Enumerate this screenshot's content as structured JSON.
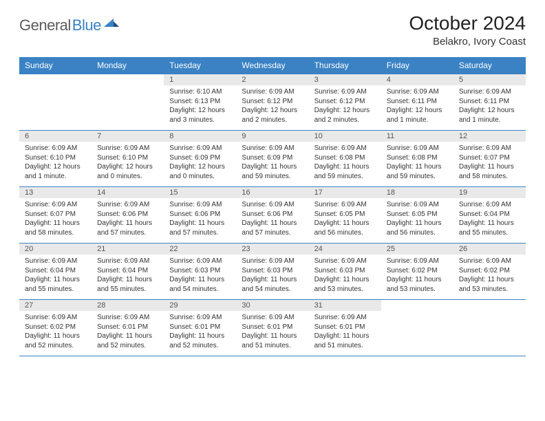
{
  "brand": {
    "part1": "General",
    "part2": "Blue"
  },
  "title": "October 2024",
  "location": "Belakro, Ivory Coast",
  "colors": {
    "header_bg": "#3a82c4",
    "header_text": "#ffffff",
    "daynum_bg": "#e9e9e9",
    "daynum_text": "#555555",
    "cell_text": "#333333",
    "rule": "#3a82c4",
    "logo_gray": "#5b5b5b",
    "logo_blue": "#3a82c4"
  },
  "typography": {
    "title_fontsize": 28,
    "location_fontsize": 15,
    "header_fontsize": 12,
    "daynum_fontsize": 11,
    "cell_fontsize": 10
  },
  "day_headers": [
    "Sunday",
    "Monday",
    "Tuesday",
    "Wednesday",
    "Thursday",
    "Friday",
    "Saturday"
  ],
  "weeks": [
    {
      "nums": [
        "",
        "",
        "1",
        "2",
        "3",
        "4",
        "5"
      ],
      "cells": [
        null,
        null,
        {
          "sr": "Sunrise: 6:10 AM",
          "ss": "Sunset: 6:13 PM",
          "dl": "Daylight: 12 hours and 3 minutes."
        },
        {
          "sr": "Sunrise: 6:09 AM",
          "ss": "Sunset: 6:12 PM",
          "dl": "Daylight: 12 hours and 2 minutes."
        },
        {
          "sr": "Sunrise: 6:09 AM",
          "ss": "Sunset: 6:12 PM",
          "dl": "Daylight: 12 hours and 2 minutes."
        },
        {
          "sr": "Sunrise: 6:09 AM",
          "ss": "Sunset: 6:11 PM",
          "dl": "Daylight: 12 hours and 1 minute."
        },
        {
          "sr": "Sunrise: 6:09 AM",
          "ss": "Sunset: 6:11 PM",
          "dl": "Daylight: 12 hours and 1 minute."
        }
      ]
    },
    {
      "nums": [
        "6",
        "7",
        "8",
        "9",
        "10",
        "11",
        "12"
      ],
      "cells": [
        {
          "sr": "Sunrise: 6:09 AM",
          "ss": "Sunset: 6:10 PM",
          "dl": "Daylight: 12 hours and 1 minute."
        },
        {
          "sr": "Sunrise: 6:09 AM",
          "ss": "Sunset: 6:10 PM",
          "dl": "Daylight: 12 hours and 0 minutes."
        },
        {
          "sr": "Sunrise: 6:09 AM",
          "ss": "Sunset: 6:09 PM",
          "dl": "Daylight: 12 hours and 0 minutes."
        },
        {
          "sr": "Sunrise: 6:09 AM",
          "ss": "Sunset: 6:09 PM",
          "dl": "Daylight: 11 hours and 59 minutes."
        },
        {
          "sr": "Sunrise: 6:09 AM",
          "ss": "Sunset: 6:08 PM",
          "dl": "Daylight: 11 hours and 59 minutes."
        },
        {
          "sr": "Sunrise: 6:09 AM",
          "ss": "Sunset: 6:08 PM",
          "dl": "Daylight: 11 hours and 59 minutes."
        },
        {
          "sr": "Sunrise: 6:09 AM",
          "ss": "Sunset: 6:07 PM",
          "dl": "Daylight: 11 hours and 58 minutes."
        }
      ]
    },
    {
      "nums": [
        "13",
        "14",
        "15",
        "16",
        "17",
        "18",
        "19"
      ],
      "cells": [
        {
          "sr": "Sunrise: 6:09 AM",
          "ss": "Sunset: 6:07 PM",
          "dl": "Daylight: 11 hours and 58 minutes."
        },
        {
          "sr": "Sunrise: 6:09 AM",
          "ss": "Sunset: 6:06 PM",
          "dl": "Daylight: 11 hours and 57 minutes."
        },
        {
          "sr": "Sunrise: 6:09 AM",
          "ss": "Sunset: 6:06 PM",
          "dl": "Daylight: 11 hours and 57 minutes."
        },
        {
          "sr": "Sunrise: 6:09 AM",
          "ss": "Sunset: 6:06 PM",
          "dl": "Daylight: 11 hours and 57 minutes."
        },
        {
          "sr": "Sunrise: 6:09 AM",
          "ss": "Sunset: 6:05 PM",
          "dl": "Daylight: 11 hours and 56 minutes."
        },
        {
          "sr": "Sunrise: 6:09 AM",
          "ss": "Sunset: 6:05 PM",
          "dl": "Daylight: 11 hours and 56 minutes."
        },
        {
          "sr": "Sunrise: 6:09 AM",
          "ss": "Sunset: 6:04 PM",
          "dl": "Daylight: 11 hours and 55 minutes."
        }
      ]
    },
    {
      "nums": [
        "20",
        "21",
        "22",
        "23",
        "24",
        "25",
        "26"
      ],
      "cells": [
        {
          "sr": "Sunrise: 6:09 AM",
          "ss": "Sunset: 6:04 PM",
          "dl": "Daylight: 11 hours and 55 minutes."
        },
        {
          "sr": "Sunrise: 6:09 AM",
          "ss": "Sunset: 6:04 PM",
          "dl": "Daylight: 11 hours and 55 minutes."
        },
        {
          "sr": "Sunrise: 6:09 AM",
          "ss": "Sunset: 6:03 PM",
          "dl": "Daylight: 11 hours and 54 minutes."
        },
        {
          "sr": "Sunrise: 6:09 AM",
          "ss": "Sunset: 6:03 PM",
          "dl": "Daylight: 11 hours and 54 minutes."
        },
        {
          "sr": "Sunrise: 6:09 AM",
          "ss": "Sunset: 6:03 PM",
          "dl": "Daylight: 11 hours and 53 minutes."
        },
        {
          "sr": "Sunrise: 6:09 AM",
          "ss": "Sunset: 6:02 PM",
          "dl": "Daylight: 11 hours and 53 minutes."
        },
        {
          "sr": "Sunrise: 6:09 AM",
          "ss": "Sunset: 6:02 PM",
          "dl": "Daylight: 11 hours and 53 minutes."
        }
      ]
    },
    {
      "nums": [
        "27",
        "28",
        "29",
        "30",
        "31",
        "",
        ""
      ],
      "cells": [
        {
          "sr": "Sunrise: 6:09 AM",
          "ss": "Sunset: 6:02 PM",
          "dl": "Daylight: 11 hours and 52 minutes."
        },
        {
          "sr": "Sunrise: 6:09 AM",
          "ss": "Sunset: 6:01 PM",
          "dl": "Daylight: 11 hours and 52 minutes."
        },
        {
          "sr": "Sunrise: 6:09 AM",
          "ss": "Sunset: 6:01 PM",
          "dl": "Daylight: 11 hours and 52 minutes."
        },
        {
          "sr": "Sunrise: 6:09 AM",
          "ss": "Sunset: 6:01 PM",
          "dl": "Daylight: 11 hours and 51 minutes."
        },
        {
          "sr": "Sunrise: 6:09 AM",
          "ss": "Sunset: 6:01 PM",
          "dl": "Daylight: 11 hours and 51 minutes."
        },
        null,
        null
      ]
    }
  ]
}
